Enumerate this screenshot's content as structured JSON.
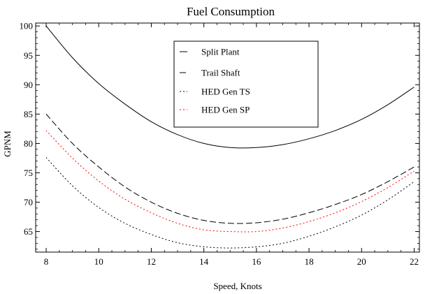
{
  "chart_data": {
    "type": "line",
    "title": "Fuel Consumption",
    "xlabel": "Speed, Knots",
    "ylabel": "GPNM",
    "xlim": [
      7.6,
      22.2
    ],
    "ylim": [
      61.5,
      100.5
    ],
    "xticks": [
      8,
      10,
      12,
      14,
      16,
      18,
      20,
      22
    ],
    "yticks": [
      65,
      70,
      75,
      80,
      85,
      90,
      95,
      100
    ],
    "grid": false,
    "legend_position": "top-center",
    "series": [
      {
        "name": "Split Plant",
        "color": "#000000",
        "dash": "solid",
        "x": [
          8,
          9,
          10,
          11,
          12,
          13,
          14,
          15,
          16,
          17,
          18,
          19,
          20,
          21,
          22
        ],
        "y": [
          100.0,
          94.6,
          90.2,
          86.7,
          83.7,
          81.5,
          80.0,
          79.3,
          79.3,
          79.8,
          80.8,
          82.2,
          84.1,
          86.6,
          89.6
        ]
      },
      {
        "name": "Trail Shaft",
        "color": "#000000",
        "dash": "dashed",
        "x": [
          8,
          9,
          10,
          11,
          12,
          13,
          14,
          15,
          16,
          17,
          18,
          19,
          20,
          21,
          22
        ],
        "y": [
          85.0,
          80.0,
          76.0,
          72.6,
          70.0,
          68.1,
          66.9,
          66.4,
          66.5,
          67.1,
          68.2,
          69.6,
          71.3,
          73.5,
          76.0
        ]
      },
      {
        "name": "HED Gen TS",
        "color": "#000000",
        "dash": "dotted",
        "x": [
          8,
          9,
          10,
          11,
          12,
          13,
          14,
          15,
          16,
          17,
          18,
          19,
          20,
          21,
          22
        ],
        "y": [
          77.6,
          72.8,
          69.1,
          66.4,
          64.5,
          63.1,
          62.4,
          62.2,
          62.4,
          63.0,
          64.2,
          65.8,
          67.8,
          70.4,
          73.5
        ]
      },
      {
        "name": "HED Gen SP",
        "color": "#ff0000",
        "dash": "dotted",
        "x": [
          8,
          9,
          10,
          11,
          12,
          13,
          14,
          15,
          16,
          17,
          18,
          19,
          20,
          21,
          22
        ],
        "y": [
          82.2,
          77.5,
          73.6,
          70.5,
          68.2,
          66.4,
          65.3,
          65.0,
          65.0,
          65.6,
          66.7,
          68.2,
          70.1,
          72.5,
          75.3
        ]
      }
    ]
  }
}
